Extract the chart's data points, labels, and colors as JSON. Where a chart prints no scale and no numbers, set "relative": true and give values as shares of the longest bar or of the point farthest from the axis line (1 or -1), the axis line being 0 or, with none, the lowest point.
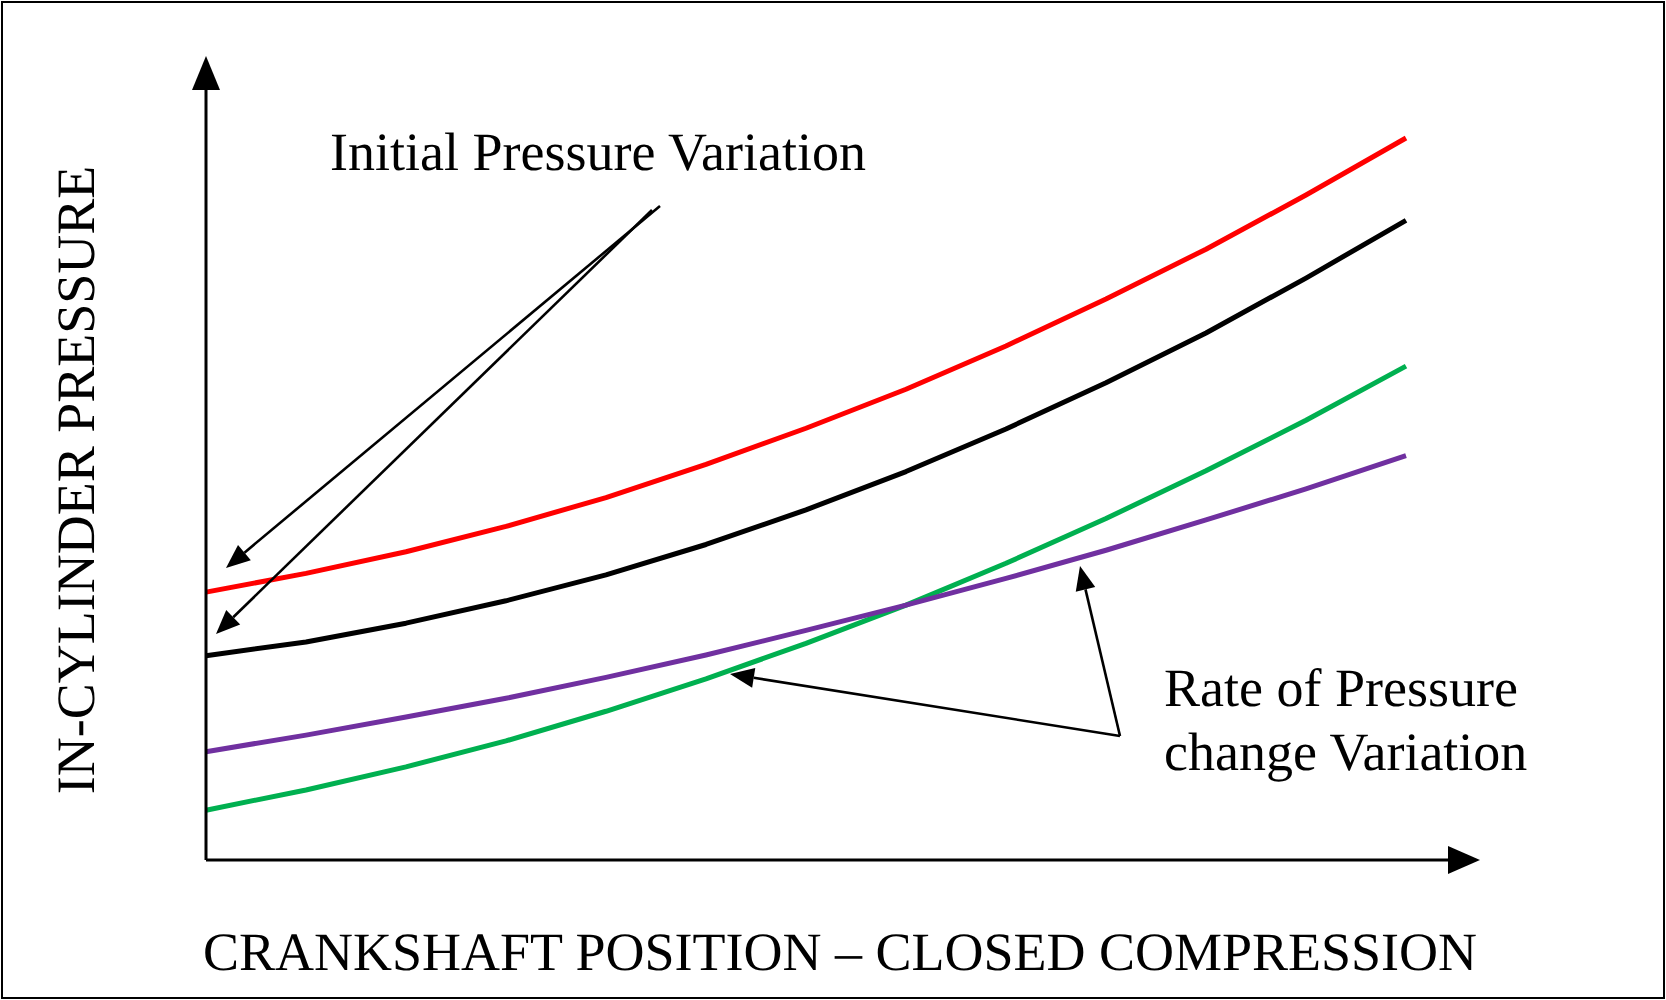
{
  "chart_data": {
    "type": "line",
    "relative": true,
    "line_style": "solid",
    "xlabel": "CRANKSHAFT POSITION – CLOSED COMPRESSION",
    "ylabel": "IN-CYLINDER PRESSURE",
    "annotations": [
      "Initial Pressure Variation",
      "Rate of Pressure change Variation"
    ],
    "categories": [
      null,
      null,
      null,
      null,
      null,
      null,
      null,
      null,
      null,
      null,
      null,
      null,
      null
    ],
    "series": [
      {
        "color": "#ff0000",
        "values": [
          0.371,
          0.397,
          0.427,
          0.462,
          0.502,
          0.548,
          0.598,
          0.652,
          0.712,
          0.777,
          0.846,
          0.921,
          1.0
        ]
      },
      {
        "color": "#000000",
        "values": [
          0.283,
          0.302,
          0.328,
          0.359,
          0.395,
          0.437,
          0.485,
          0.538,
          0.597,
          0.661,
          0.73,
          0.806,
          0.886
        ]
      },
      {
        "color": "#00b050",
        "values": [
          0.069,
          0.097,
          0.129,
          0.165,
          0.206,
          0.251,
          0.3,
          0.353,
          0.411,
          0.473,
          0.539,
          0.609,
          0.684
        ]
      },
      {
        "color": "#7030a0",
        "values": [
          0.15,
          0.173,
          0.198,
          0.224,
          0.253,
          0.284,
          0.318,
          0.353,
          0.39,
          0.429,
          0.471,
          0.514,
          0.56
        ]
      }
    ]
  }
}
